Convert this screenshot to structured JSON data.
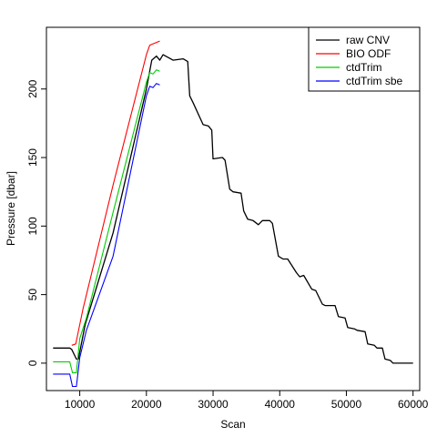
{
  "chart_data": {
    "type": "line",
    "title": "",
    "xlabel": "Scan",
    "ylabel": "Pressure [dbar]",
    "xlim": [
      5000,
      61000
    ],
    "ylim": [
      -20,
      245
    ],
    "x_ticks": [
      10000,
      20000,
      30000,
      40000,
      50000,
      60000
    ],
    "y_ticks": [
      0,
      50,
      100,
      150,
      200
    ],
    "grid": false,
    "legend_position": "top-right",
    "series": [
      {
        "name": "raw CNV",
        "color": "#000000",
        "x": [
          6000,
          8500,
          8800,
          9500,
          9800,
          10800,
          15000,
          20000,
          20800,
          21500,
          22000,
          22500,
          24000,
          25500,
          26200,
          26500,
          27000,
          28500,
          29300,
          29800,
          30000,
          31400,
          31800,
          32500,
          33000,
          34200,
          34600,
          35200,
          36000,
          36800,
          37400,
          38500,
          38900,
          39800,
          40500,
          41200,
          42500,
          43000,
          43600,
          44800,
          45400,
          46400,
          46800,
          47800,
          48300,
          48800,
          49800,
          50200,
          51200,
          51600,
          52800,
          53200,
          54200,
          54600,
          55400,
          55800,
          56600,
          57000,
          59200,
          60000
        ],
        "y": [
          11,
          11,
          10,
          3,
          3,
          28,
          95,
          200,
          221,
          224,
          221,
          225,
          221,
          222,
          220,
          195,
          190,
          174,
          173,
          170,
          149,
          150,
          148,
          127,
          125,
          124,
          111,
          105,
          104,
          101,
          104,
          104,
          102,
          78,
          76,
          76,
          66,
          63,
          64,
          54,
          53,
          43,
          42,
          42,
          42,
          34,
          33,
          26,
          25,
          24,
          23,
          14,
          13,
          11,
          11,
          3,
          2,
          0,
          0,
          0
        ]
      },
      {
        "name": "BIO ODF",
        "color": "#ff0000",
        "x": [
          8800,
          9400,
          10500,
          15000,
          20000,
          20500,
          22000
        ],
        "y": [
          13,
          14,
          40,
          130,
          225,
          232,
          235
        ]
      },
      {
        "name": "ctdTrim",
        "color": "#00cc00",
        "x": [
          6000,
          8500,
          8900,
          9500,
          10000,
          11000,
          15000,
          20000,
          20500,
          21000,
          21500,
          22000
        ],
        "y": [
          1,
          1,
          -7,
          -7,
          18,
          33,
          110,
          205,
          212,
          211,
          214,
          213
        ]
      },
      {
        "name": "ctdTrim sbe",
        "color": "#0000ff",
        "x": [
          6000,
          8500,
          8900,
          9500,
          10000,
          11000,
          15000,
          20000,
          20500,
          21000,
          21500,
          22000
        ],
        "y": [
          -8,
          -8,
          -17,
          -17,
          4,
          24,
          78,
          195,
          202,
          201,
          204,
          203
        ]
      }
    ]
  }
}
